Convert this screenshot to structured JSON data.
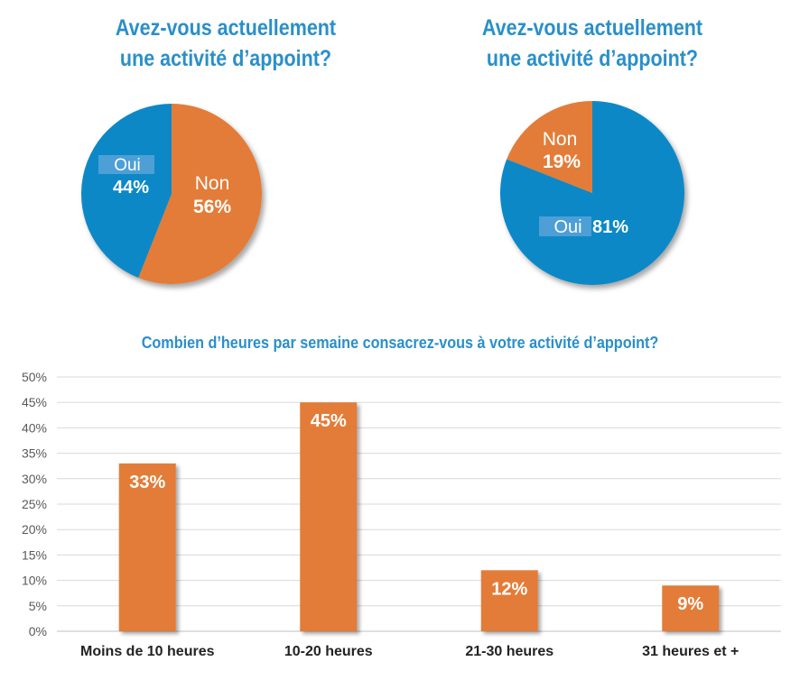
{
  "chart_data": [
    {
      "type": "pie",
      "title_lines": [
        "Avez-vous actuellement",
        "une activité d’appoint?"
      ],
      "slices": [
        {
          "label": "Non",
          "value": 56,
          "value_text": "56%",
          "color": "#e37b38"
        },
        {
          "label": "Oui",
          "value": 44,
          "value_text": "44%",
          "color": "#1088c7"
        }
      ]
    },
    {
      "type": "pie",
      "title_lines": [
        "Avez-vous actuellement",
        "une activité d’appoint?"
      ],
      "slices": [
        {
          "label": "Oui",
          "value": 81,
          "value_text": "81%",
          "color": "#1088c7"
        },
        {
          "label": "Non",
          "value": 19,
          "value_text": "19%",
          "color": "#e37b38"
        }
      ]
    },
    {
      "type": "bar",
      "title": "Combien d’heures par semaine consacrez-vous à votre activité d’appoint?",
      "categories": [
        "Moins de 10 heures",
        "10-20 heures",
        "21-30 heures",
        "31 heures et +"
      ],
      "values": [
        33,
        45,
        12,
        9
      ],
      "value_labels": [
        "33%",
        "45%",
        "12%",
        "9%"
      ],
      "ylim": [
        0,
        50
      ],
      "yticks": [
        "0%",
        "5%",
        "10%",
        "15%",
        "20%",
        "25%",
        "30%",
        "35%",
        "40%",
        "45%",
        "50%"
      ],
      "grid": true,
      "bar_color": "#e37b38"
    }
  ]
}
